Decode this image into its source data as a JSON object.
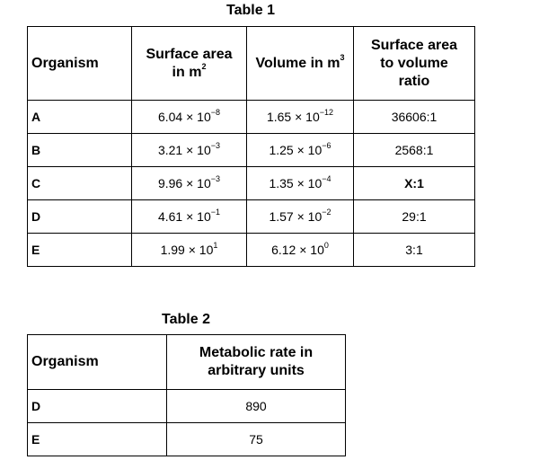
{
  "table1": {
    "caption": "Table 1",
    "headers": {
      "organism": "Organism",
      "surface_area_line1": "Surface area",
      "surface_area_line2": "in m",
      "surface_area_sup": "2",
      "volume": "Volume in m",
      "volume_sup": "3",
      "ratio_line1": "Surface area",
      "ratio_line2": "to volume",
      "ratio_line3": "ratio"
    },
    "rows": [
      {
        "organism": "A",
        "sa_base": "6.04 × 10",
        "sa_exp": "−8",
        "vol_base": "1.65 × 10",
        "vol_exp": "−12",
        "ratio": "36606:1"
      },
      {
        "organism": "B",
        "sa_base": "3.21 × 10",
        "sa_exp": "−3",
        "vol_base": "1.25 × 10",
        "vol_exp": "−6",
        "ratio": "2568:1"
      },
      {
        "organism": "C",
        "sa_base": "9.96 × 10",
        "sa_exp": "−3",
        "vol_base": "1.35 × 10",
        "vol_exp": "−4",
        "ratio": "X:1"
      },
      {
        "organism": "D",
        "sa_base": "4.61 × 10",
        "sa_exp": "−1",
        "vol_base": "1.57 × 10",
        "vol_exp": "−2",
        "ratio": "29:1"
      },
      {
        "organism": "E",
        "sa_base": "1.99 × 10",
        "sa_exp": "1",
        "vol_base": "6.12 × 10",
        "vol_exp": "0",
        "ratio": "3:1"
      }
    ]
  },
  "table2": {
    "caption": "Table 2",
    "headers": {
      "organism": "Organism",
      "rate_line1": "Metabolic rate in",
      "rate_line2": "arbitrary units"
    },
    "rows": [
      {
        "organism": "D",
        "rate": "890"
      },
      {
        "organism": "E",
        "rate": "75"
      }
    ]
  }
}
